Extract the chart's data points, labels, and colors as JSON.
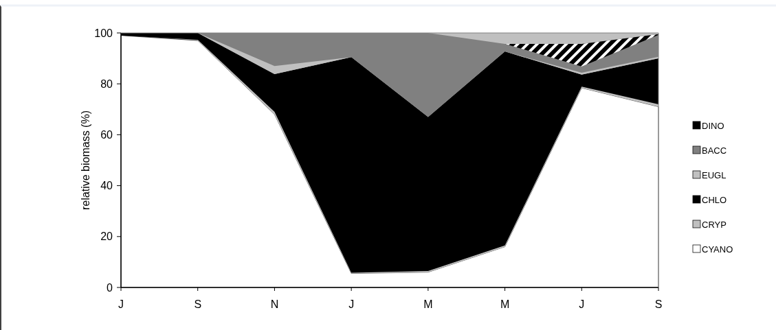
{
  "chart_data": {
    "type": "area",
    "stacked": true,
    "ylabel": "relative biomass (%)",
    "categories": [
      "J",
      "S",
      "N",
      "J",
      "M",
      "M",
      "J",
      "S"
    ],
    "ylim": [
      0,
      100
    ],
    "yticks": [
      0,
      20,
      40,
      60,
      80,
      100
    ],
    "grid": false,
    "legend": "right",
    "series": [
      {
        "name": "CYANO",
        "color": "#ffffff",
        "values": [
          99,
          97,
          68,
          5.5,
          6,
          16,
          78.4,
          71
        ]
      },
      {
        "name": "CRYP",
        "color": "#c0c0c0",
        "values": [
          null,
          0.3,
          1,
          0.3,
          0.5,
          0.5,
          0.5,
          1
        ]
      },
      {
        "name": "CHLO",
        "color": "#000000",
        "values": [
          1,
          2.7,
          14.8,
          84.7,
          60.5,
          76.2,
          4.7,
          18
        ]
      },
      {
        "name": "EUGL",
        "color": "#c0c0c0",
        "values": [
          null,
          0,
          3.2,
          0,
          null,
          0,
          0.8,
          0.6
        ]
      },
      {
        "name": "BACC",
        "color": "#808080",
        "values": [
          null,
          0,
          13,
          9.5,
          33,
          3,
          2.4,
          8.6
        ]
      },
      {
        "name": "DINO",
        "color": "#000000",
        "values": [
          null,
          null,
          null,
          null,
          null,
          0,
          8.9,
          0.3
        ]
      }
    ]
  }
}
